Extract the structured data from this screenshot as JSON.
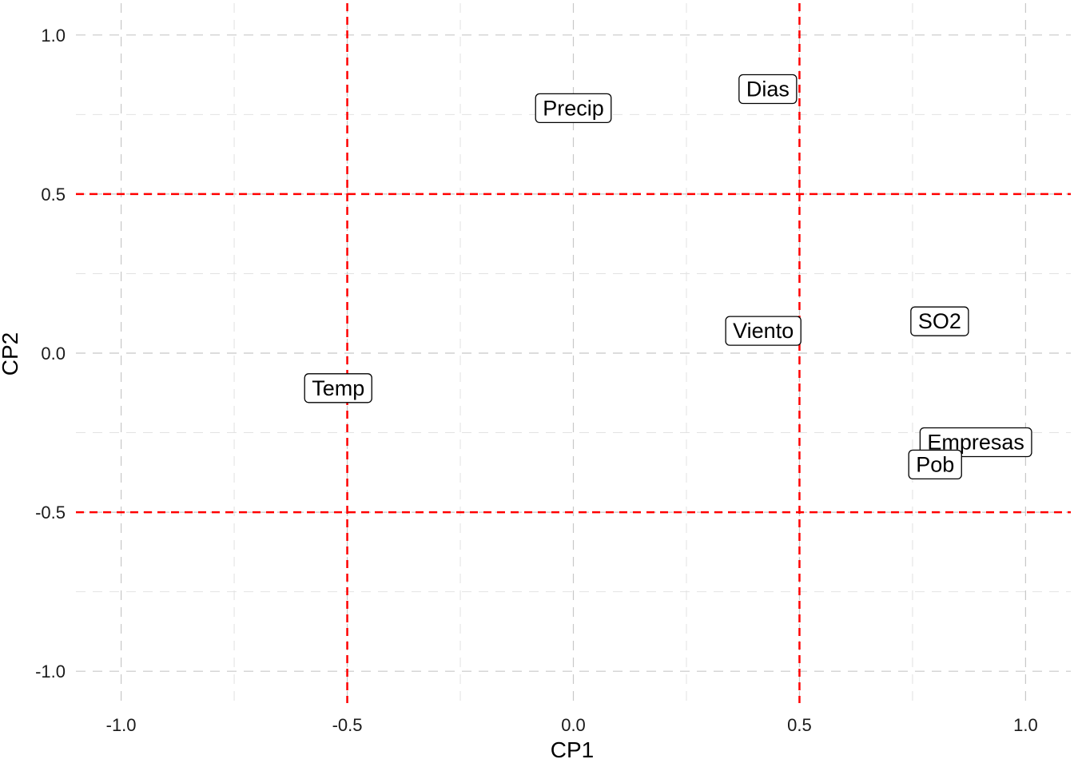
{
  "chart_data": {
    "type": "scatter",
    "title": "",
    "xlabel": "CP1",
    "ylabel": "CP2",
    "xlim": [
      -1.1,
      1.1
    ],
    "ylim": [
      -1.1,
      1.1
    ],
    "x_ticks": [
      -1.0,
      -0.5,
      0.0,
      0.5,
      1.0
    ],
    "y_ticks": [
      -1.0,
      -0.5,
      0.0,
      0.5,
      1.0
    ],
    "x_tick_labels": [
      "-1.0",
      "-0.5",
      "0.0",
      "0.5",
      "1.0"
    ],
    "y_tick_labels": [
      "-1.0",
      "-0.5",
      "0.0",
      "0.5",
      "1.0"
    ],
    "grid": true,
    "grid_style": "dashed",
    "reference_lines": {
      "vertical": [
        -0.5,
        0.5
      ],
      "horizontal": [
        -0.5,
        0.5
      ],
      "color": "#ff0000",
      "style": "dashed"
    },
    "points": [
      {
        "label": "Dias",
        "x": 0.43,
        "y": 0.83
      },
      {
        "label": "Precip",
        "x": 0.0,
        "y": 0.77
      },
      {
        "label": "SO2",
        "x": 0.81,
        "y": 0.1
      },
      {
        "label": "Viento",
        "x": 0.42,
        "y": 0.07
      },
      {
        "label": "Temp",
        "x": -0.52,
        "y": -0.11
      },
      {
        "label": "Empresas",
        "x": 0.89,
        "y": -0.28
      },
      {
        "label": "Pob",
        "x": 0.8,
        "y": -0.35
      }
    ]
  },
  "colors": {
    "grid": "#c8c8c8",
    "reference": "#ff0000",
    "text": "#000000"
  }
}
